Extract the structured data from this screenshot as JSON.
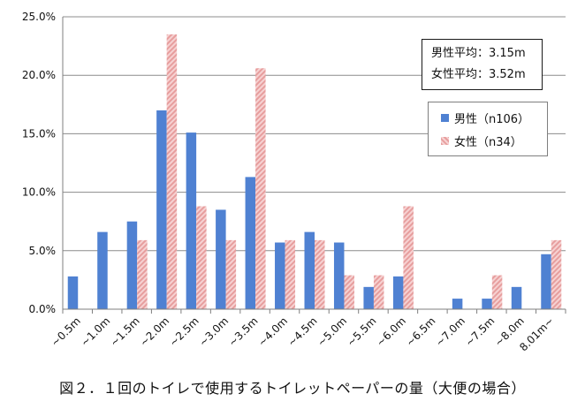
{
  "chart_data": {
    "type": "bar",
    "title": "",
    "xlabel": "",
    "ylabel": "",
    "ylim": [
      0,
      25
    ],
    "y_ticks": [
      "0.0%",
      "5.0%",
      "10.0%",
      "15.0%",
      "20.0%",
      "25.0%"
    ],
    "y_tick_values": [
      0,
      5,
      10,
      15,
      20,
      25
    ],
    "grid": true,
    "legend_position": "right",
    "categories": [
      "~0.5m",
      "~1.0m",
      "~1.5m",
      "~2.0m",
      "~2.5m",
      "~3.0m",
      "~3.5m",
      "~4.0m",
      "~4.5m",
      "~5.0m",
      "~5.5m",
      "~6.0m",
      "~6.5m",
      "~7.0m",
      "~7.5m",
      "~8.0m",
      "8.01m~"
    ],
    "series": [
      {
        "name": "男性（n106）",
        "color": "#4f81d2",
        "values": [
          2.8,
          6.6,
          7.5,
          17.0,
          15.1,
          8.5,
          11.3,
          5.7,
          6.6,
          5.7,
          1.9,
          2.8,
          0.0,
          0.9,
          0.9,
          1.9,
          4.7
        ]
      },
      {
        "name": "女性（n34）",
        "color": "#e79e9e",
        "values": [
          0.0,
          0.0,
          5.9,
          23.5,
          8.8,
          5.9,
          20.6,
          5.9,
          5.9,
          2.9,
          2.9,
          8.8,
          0.0,
          0.0,
          2.9,
          0.0,
          5.9
        ]
      }
    ]
  },
  "average_box": {
    "male_avg": "男性平均：3.15m",
    "female_avg": "女性平均：3.52m"
  },
  "legend": {
    "male": "男性（n106）",
    "female": "女性（n34）"
  },
  "caption": "図２．１回のトイレで使用するトイレットペーパーの量（大便の場合）"
}
